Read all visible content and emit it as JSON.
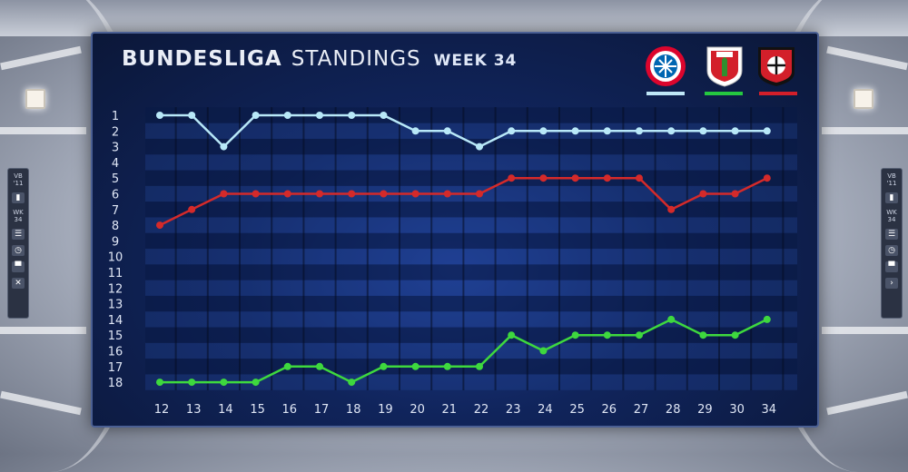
{
  "header": {
    "title_main": "BUNDESLIGA",
    "title_sub": "STANDINGS",
    "week": "WEEK 34"
  },
  "side_panel": {
    "left": {
      "line1": "VB",
      "line2": "'11",
      "line3": "WK",
      "line4": "34"
    },
    "right": {
      "line1": "VB",
      "line2": "'11",
      "line3": "WK",
      "line4": "34"
    }
  },
  "teams": [
    {
      "logo_text": "FC BAYERN MÜNCHEN",
      "color": "#a9dcf2",
      "bar_color": "#bfe7f7"
    },
    {
      "logo_text": "FCA",
      "color": "#d31f2a",
      "bar_color": "#25c840"
    },
    {
      "logo_text": "BAYER LEVERKUSEN",
      "color": "#d31f2a",
      "bar_color": "#d31f2a"
    }
  ],
  "chart_data": {
    "type": "line",
    "x": [
      12,
      13,
      14,
      15,
      16,
      17,
      18,
      19,
      20,
      21,
      22,
      23,
      24,
      25,
      26,
      27,
      28,
      29,
      30,
      34
    ],
    "x_labels": [
      "12",
      "13",
      "14",
      "15",
      "16",
      "17",
      "18",
      "19",
      "20",
      "21",
      "22",
      "23",
      "24",
      "25",
      "26",
      "27",
      "28",
      "29",
      "30",
      "34"
    ],
    "y_labels": [
      "1",
      "2",
      "3",
      "4",
      "5",
      "6",
      "7",
      "8",
      "9",
      "10",
      "11",
      "12",
      "13",
      "14",
      "15",
      "16",
      "17",
      "18"
    ],
    "ylim": [
      1,
      18
    ],
    "y_inverted": true,
    "series": [
      {
        "color": "#b8e8f8",
        "values": [
          1,
          1,
          3,
          1,
          1,
          1,
          1,
          1,
          2,
          2,
          3,
          2,
          2,
          2,
          2,
          2,
          2,
          2,
          2,
          2
        ]
      },
      {
        "color": "#d42a2a",
        "values": [
          8,
          7,
          6,
          6,
          6,
          6,
          6,
          6,
          6,
          6,
          6,
          5,
          5,
          5,
          5,
          5,
          7,
          6,
          6,
          5
        ]
      },
      {
        "color": "#3ed83e",
        "values": [
          18,
          18,
          18,
          18,
          17,
          17,
          18,
          17,
          17,
          17,
          17,
          15,
          16,
          15,
          15,
          15,
          14,
          15,
          15,
          14
        ]
      }
    ]
  }
}
